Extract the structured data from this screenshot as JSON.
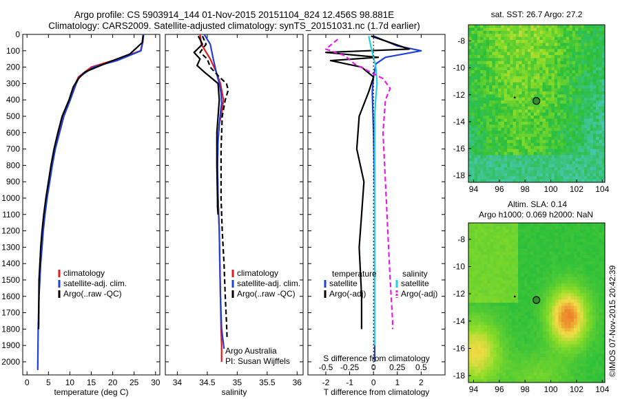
{
  "header": {
    "line1": "Argo profile: CS 5903914_144 01-Nov-2015 20151104_824 12.456S 98.881E",
    "line2": "Climatology: CARS2009. Satellite-adjusted climatology: synTS_20151031.nc (1.7d earlier)"
  },
  "credit": "©IMOS 07-Nov-2015 20:42:39",
  "colors": {
    "climatology": "#e41a1c",
    "satellite": "#1f3fd8",
    "argo": "#000000",
    "sal_satellite": "#22d3dd",
    "sal_argo": "#e61ce6",
    "marker": "#2f8f2f"
  },
  "chart_data": [
    {
      "type": "line",
      "xlabel": "temperature (deg C)",
      "ylim": [
        2080,
        0
      ],
      "xlim": [
        -1,
        31
      ],
      "xticks": [
        0,
        5,
        10,
        15,
        20,
        25,
        30
      ],
      "yticks": [
        0,
        100,
        200,
        300,
        400,
        500,
        600,
        700,
        800,
        900,
        1000,
        1100,
        1200,
        1300,
        1400,
        1500,
        1600,
        1700,
        1800,
        1900,
        2000
      ],
      "legend": [
        "climatology",
        "satellite-adj. clim.",
        "Argo(..raw -QC)"
      ],
      "series": [
        {
          "name": "climatology",
          "style": "solid",
          "color": "#e41a1c",
          "x": [
            27.2,
            27.0,
            26.5,
            20.0,
            15.0,
            12.0,
            11.3,
            10.0,
            8.5,
            7.5,
            6.5,
            5.8,
            5.2,
            4.6,
            4.1,
            3.7,
            3.4,
            3.1,
            2.9,
            2.8,
            2.7
          ],
          "y": [
            0,
            50,
            100,
            160,
            200,
            260,
            300,
            400,
            500,
            600,
            700,
            800,
            900,
            1000,
            1100,
            1200,
            1300,
            1400,
            1500,
            1600,
            1800
          ]
        },
        {
          "name": "satellite-adj. clim.",
          "style": "solid",
          "color": "#1f3fd8",
          "x": [
            27.2,
            27.0,
            26.6,
            21.0,
            15.5,
            12.2,
            11.5,
            10.1,
            8.6,
            7.6,
            6.6,
            5.9,
            5.3,
            4.7,
            4.2,
            3.8,
            3.5,
            3.2,
            3.0,
            2.8,
            2.6,
            2.5
          ],
          "y": [
            0,
            50,
            100,
            160,
            200,
            260,
            300,
            400,
            500,
            600,
            700,
            800,
            900,
            1000,
            1100,
            1200,
            1300,
            1400,
            1500,
            1600,
            1800,
            2050
          ]
        },
        {
          "name": "Argo(..raw -QC)",
          "style": "solid",
          "color": "#000000",
          "x": [
            27.1,
            26.9,
            24.0,
            19.0,
            13.5,
            12.0,
            10.8,
            9.8,
            8.2,
            7.2,
            6.3,
            5.6,
            5.0,
            4.4,
            3.9,
            3.5,
            3.2,
            3.0,
            2.8,
            2.7
          ],
          "y": [
            5,
            50,
            120,
            170,
            230,
            270,
            320,
            400,
            500,
            600,
            700,
            800,
            900,
            1000,
            1100,
            1200,
            1300,
            1400,
            1500,
            1800
          ]
        }
      ]
    },
    {
      "type": "line",
      "xlabel": "salinity",
      "ylim": [
        2080,
        0
      ],
      "xlim": [
        33.8,
        36.1
      ],
      "xticks": [
        34,
        34.5,
        35,
        35.5,
        36
      ],
      "legend": [
        "climatology",
        "satellite-adj. clim.",
        "Argo(..raw -QC)"
      ],
      "annotation": [
        "Argo Australia",
        "PI: Susan Wijffels"
      ],
      "series": [
        {
          "name": "climatology",
          "style": "solid",
          "color": "#e41a1c",
          "x": [
            34.38,
            34.4,
            34.55,
            34.65,
            34.72,
            34.75,
            34.77,
            34.74,
            34.7,
            34.68,
            34.67,
            34.68,
            34.69,
            34.7,
            34.71,
            34.72,
            34.73,
            34.74,
            34.74
          ],
          "y": [
            0,
            60,
            150,
            230,
            300,
            360,
            400,
            480,
            550,
            650,
            800,
            1000,
            1100,
            1200,
            1400,
            1600,
            1800,
            1900,
            2000
          ]
        },
        {
          "name": "satellite-adj. clim.",
          "style": "solid",
          "color": "#1f3fd8",
          "x": [
            34.45,
            34.55,
            34.6,
            34.65,
            34.7,
            34.73,
            34.74,
            34.72,
            34.7,
            34.68,
            34.67,
            34.68,
            34.69,
            34.7,
            34.71,
            34.72,
            34.74,
            34.78
          ],
          "y": [
            0,
            60,
            150,
            230,
            300,
            360,
            420,
            480,
            550,
            650,
            800,
            1000,
            1100,
            1200,
            1400,
            1600,
            1800,
            1920
          ]
        },
        {
          "name": "Argo(..raw -QC)",
          "style": "solid",
          "color": "#000000",
          "x": [
            34.35,
            34.42,
            34.28,
            34.38,
            34.33,
            34.45,
            34.55,
            34.68,
            34.7,
            34.66,
            34.66,
            34.67,
            34.67,
            34.68
          ],
          "y": [
            10,
            60,
            110,
            150,
            190,
            230,
            260,
            300,
            400,
            600,
            800,
            1000,
            1050,
            1100
          ]
        },
        {
          "name": "Argo(-adj)",
          "style": "dashed",
          "color": "#000000",
          "x": [
            34.42,
            34.48,
            34.38,
            34.5,
            34.55,
            34.7,
            34.82,
            34.85,
            34.8,
            34.75,
            34.73,
            34.73,
            34.75,
            34.78,
            34.8,
            34.82,
            34.83
          ],
          "y": [
            10,
            60,
            110,
            150,
            200,
            260,
            300,
            340,
            400,
            500,
            700,
            1000,
            1200,
            1400,
            1600,
            1750,
            1850
          ]
        }
      ]
    },
    {
      "type": "line",
      "xlabel": "T difference from climatology",
      "xlabel_top": "S difference from climatology",
      "ylim": [
        2080,
        0
      ],
      "xlim": [
        -2.75,
        3.0
      ],
      "xticks": [
        -2,
        -1,
        0,
        1,
        2
      ],
      "xticks_top": [
        "-0.5",
        "-0.25",
        "0",
        "0.25",
        "0.5"
      ],
      "legend_left": [
        "temperature",
        "satellite",
        "Argo(-adj)"
      ],
      "legend_right": [
        "salinity",
        "satellite",
        "Argo(-adj)"
      ],
      "series": [
        {
          "name": "temperature satellite",
          "style": "solid",
          "color": "#1f3fd8",
          "x": [
            0.0,
            1.0,
            2.0,
            0.5,
            0.1,
            0.0,
            -0.05,
            0.0,
            0.05,
            0.05,
            0.05,
            0.05
          ],
          "y": [
            10,
            70,
            100,
            140,
            180,
            260,
            350,
            600,
            1000,
            1400,
            1800,
            2000
          ]
        },
        {
          "name": "temperature Argo(-adj)",
          "style": "solid",
          "color": "#000000",
          "x": [
            -0.1,
            1.5,
            -2.0,
            0.2,
            -1.8,
            -0.5,
            0.0,
            -0.2,
            -0.6,
            -0.7,
            -0.4,
            -0.5,
            -0.6,
            -0.5,
            -0.5
          ],
          "y": [
            10,
            90,
            110,
            140,
            160,
            200,
            260,
            350,
            500,
            700,
            900,
            1100,
            1300,
            1600,
            1800
          ]
        },
        {
          "name": "salinity satellite",
          "style": "solid",
          "color": "#22d3dd",
          "x": [
            -0.2,
            -0.1,
            0.0,
            0.1,
            0.15,
            0.1,
            0.05,
            0.05,
            0.05,
            0.05,
            0.05
          ],
          "y": [
            10,
            80,
            140,
            200,
            300,
            380,
            500,
            800,
            1200,
            1600,
            1900
          ]
        },
        {
          "name": "salinity Argo(-adj)",
          "style": "dashed",
          "color": "#e61ce6",
          "x": [
            -1.5,
            -2.0,
            -1.2,
            -0.8,
            0.4,
            0.7,
            0.5,
            0.4,
            0.5,
            0.6,
            0.7,
            0.8,
            0.8
          ],
          "y": [
            30,
            90,
            130,
            180,
            270,
            330,
            400,
            600,
            900,
            1200,
            1500,
            1750,
            1800
          ]
        }
      ]
    },
    {
      "type": "heatmap",
      "title": "sat. SST: 26.7 Argo: 27.2",
      "xlim": [
        93.6,
        104.2
      ],
      "ylim": [
        -18.5,
        -6.8
      ],
      "xticks": [
        94,
        96,
        98,
        100,
        102,
        104
      ],
      "yticks": [
        -8,
        -10,
        -12,
        -14,
        -16,
        -18
      ],
      "argo_position": [
        98.881,
        -12.456
      ]
    },
    {
      "type": "heatmap",
      "title": "Altim. SLA: 0.14",
      "subtitle": "Argo h1000: 0.069 h2000: NaN",
      "xlim": [
        93.6,
        104.2
      ],
      "ylim": [
        -18.5,
        -6.8
      ],
      "xticks": [
        94,
        96,
        98,
        100,
        102,
        104
      ],
      "yticks": [
        -8,
        -10,
        -12,
        -14,
        -16,
        -18
      ],
      "argo_position": [
        98.881,
        -12.456
      ]
    }
  ]
}
